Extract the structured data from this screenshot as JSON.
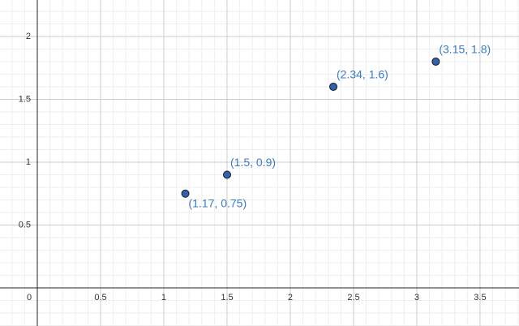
{
  "chart_data": {
    "type": "scatter",
    "x": [
      1.17,
      1.5,
      2.34,
      3.15
    ],
    "values": [
      0.75,
      0.9,
      1.6,
      1.8
    ],
    "value_labels": [
      "(1.17, 0.75)",
      "(1.5, 0.9)",
      "(2.34, 1.6)",
      "(3.15, 1.8)"
    ],
    "color": "#2f63b0",
    "xlim": [
      -0.295,
      3.808
    ],
    "ylim": [
      -0.303,
      2.29
    ],
    "xticks": [
      0,
      0.5,
      1,
      1.5,
      2,
      2.5,
      3,
      3.5
    ],
    "yticks": [
      0.5,
      1,
      1.5,
      2
    ],
    "grid": true
  }
}
